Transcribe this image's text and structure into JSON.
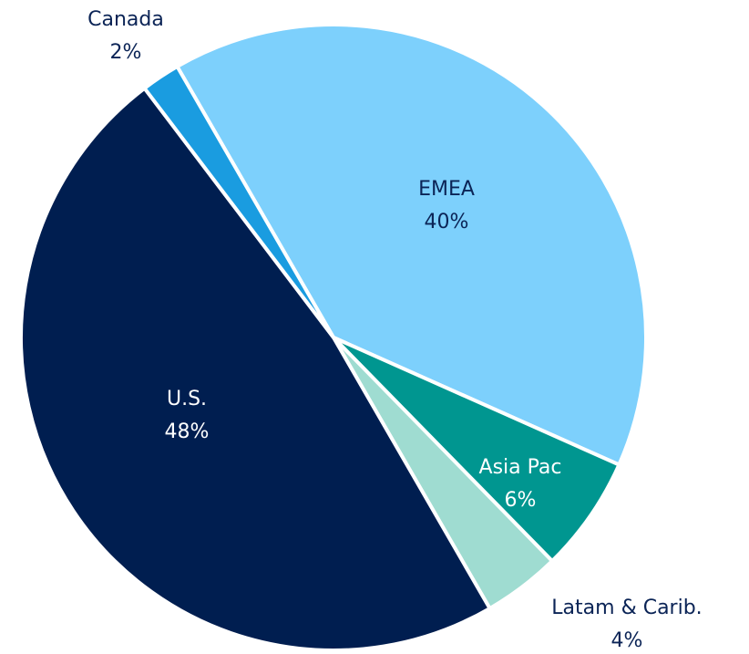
{
  "chart_data": {
    "type": "pie",
    "categories": [
      "EMEA",
      "Asia Pac",
      "Latam & Carib.",
      "U.S.",
      "Canada"
    ],
    "values": [
      40,
      6,
      4,
      48,
      2
    ],
    "value_labels": [
      "40%",
      "6%",
      "4%",
      "48%",
      "2%"
    ],
    "colors": [
      "#7dd0fc",
      "#009690",
      "#9fdcd1",
      "#001e50",
      "#1a9ce0"
    ]
  }
}
